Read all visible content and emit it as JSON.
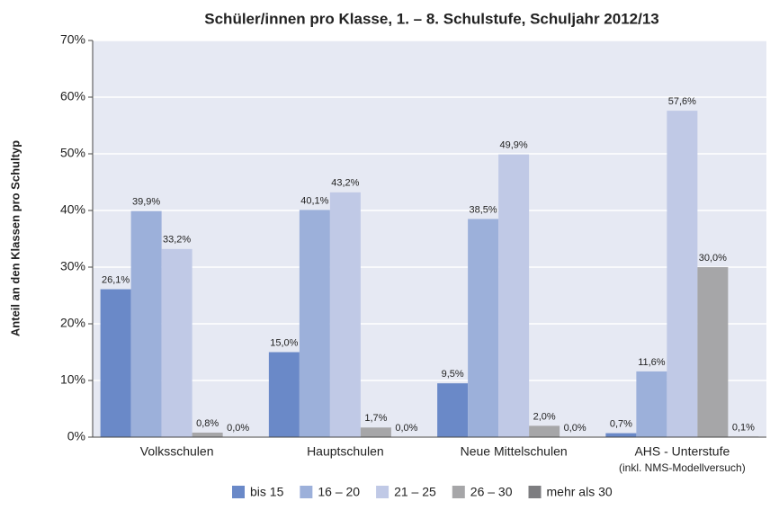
{
  "chart_data": {
    "type": "bar",
    "title": "Schüler/innen pro Klasse, 1. – 8. Schulstufe, Schuljahr 2012/13",
    "y_label": "Anteil an den Klassen pro Schultyp",
    "categories": [
      "Volksschulen",
      "Hauptschulen",
      "Neue Mittelschulen",
      "AHS - Unterstufe"
    ],
    "category_sublabels": [
      null,
      null,
      null,
      "(inkl. NMS-Modellversuch)"
    ],
    "series": [
      {
        "name": "bis 15",
        "color": "#6a89c8",
        "values": [
          26.1,
          15.0,
          9.5,
          0.7
        ],
        "value_labels": [
          "26,1%",
          "15,0%",
          "9,5%",
          "0,7%"
        ]
      },
      {
        "name": "16 – 20",
        "color": "#9cb0da",
        "values": [
          39.9,
          40.1,
          38.5,
          11.6
        ],
        "value_labels": [
          "39,9%",
          "40,1%",
          "38,5%",
          "11,6%"
        ]
      },
      {
        "name": "21 – 25",
        "color": "#c0c9e6",
        "values": [
          33.2,
          43.2,
          49.9,
          57.6
        ],
        "value_labels": [
          "33,2%",
          "43,2%",
          "49,9%",
          "57,6%"
        ]
      },
      {
        "name": "26 – 30",
        "color": "#a6a6a8",
        "values": [
          0.8,
          1.7,
          2.0,
          30.0
        ],
        "value_labels": [
          "0,8%",
          "1,7%",
          "2,0%",
          "30,0%"
        ]
      },
      {
        "name": "mehr als 30",
        "color": "#7d7d80",
        "values": [
          0.0,
          0.0,
          0.0,
          0.1
        ],
        "value_labels": [
          "0,0%",
          "0,0%",
          "0,0%",
          "0,1%"
        ]
      }
    ],
    "ylim": [
      0,
      70
    ],
    "yticks": [
      {
        "value": 0,
        "label": "0%"
      },
      {
        "value": 10,
        "label": "10%"
      },
      {
        "value": 20,
        "label": "20%"
      },
      {
        "value": 30,
        "label": "30%"
      },
      {
        "value": 40,
        "label": "40%"
      },
      {
        "value": 50,
        "label": "50%"
      },
      {
        "value": 60,
        "label": "60%"
      },
      {
        "value": 70,
        "label": "70%"
      }
    ],
    "grid": true,
    "legend": "bottom"
  }
}
